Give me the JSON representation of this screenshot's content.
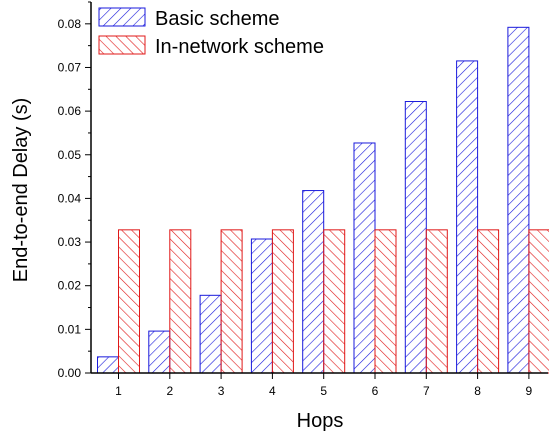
{
  "colors": {
    "basic": "#1a1adc",
    "innetwork": "#e01818",
    "axis": "#000000"
  },
  "chart_data": {
    "type": "bar",
    "title": "",
    "xlabel": "Hops",
    "ylabel": "End-to-end Delay (s)",
    "categories": [
      "1",
      "2",
      "3",
      "4",
      "5",
      "6",
      "7",
      "8",
      "9"
    ],
    "ylim": [
      0.0,
      0.085
    ],
    "yticks": [
      "0.00",
      "0.01",
      "0.02",
      "0.03",
      "0.04",
      "0.05",
      "0.06",
      "0.07",
      "0.08"
    ],
    "legend_position": "top-left",
    "grid": false,
    "series": [
      {
        "name": "Basic scheme",
        "pattern": "diagonal-hatch",
        "values": [
          0.0037,
          0.0096,
          0.0178,
          0.0307,
          0.0418,
          0.0527,
          0.0622,
          0.0715,
          0.0792
        ]
      },
      {
        "name": "In-network scheme",
        "pattern": "back-diagonal-hatch",
        "values": [
          0.0328,
          0.0328,
          0.0328,
          0.0328,
          0.0328,
          0.0328,
          0.0328,
          0.0328,
          0.0328
        ]
      }
    ]
  }
}
